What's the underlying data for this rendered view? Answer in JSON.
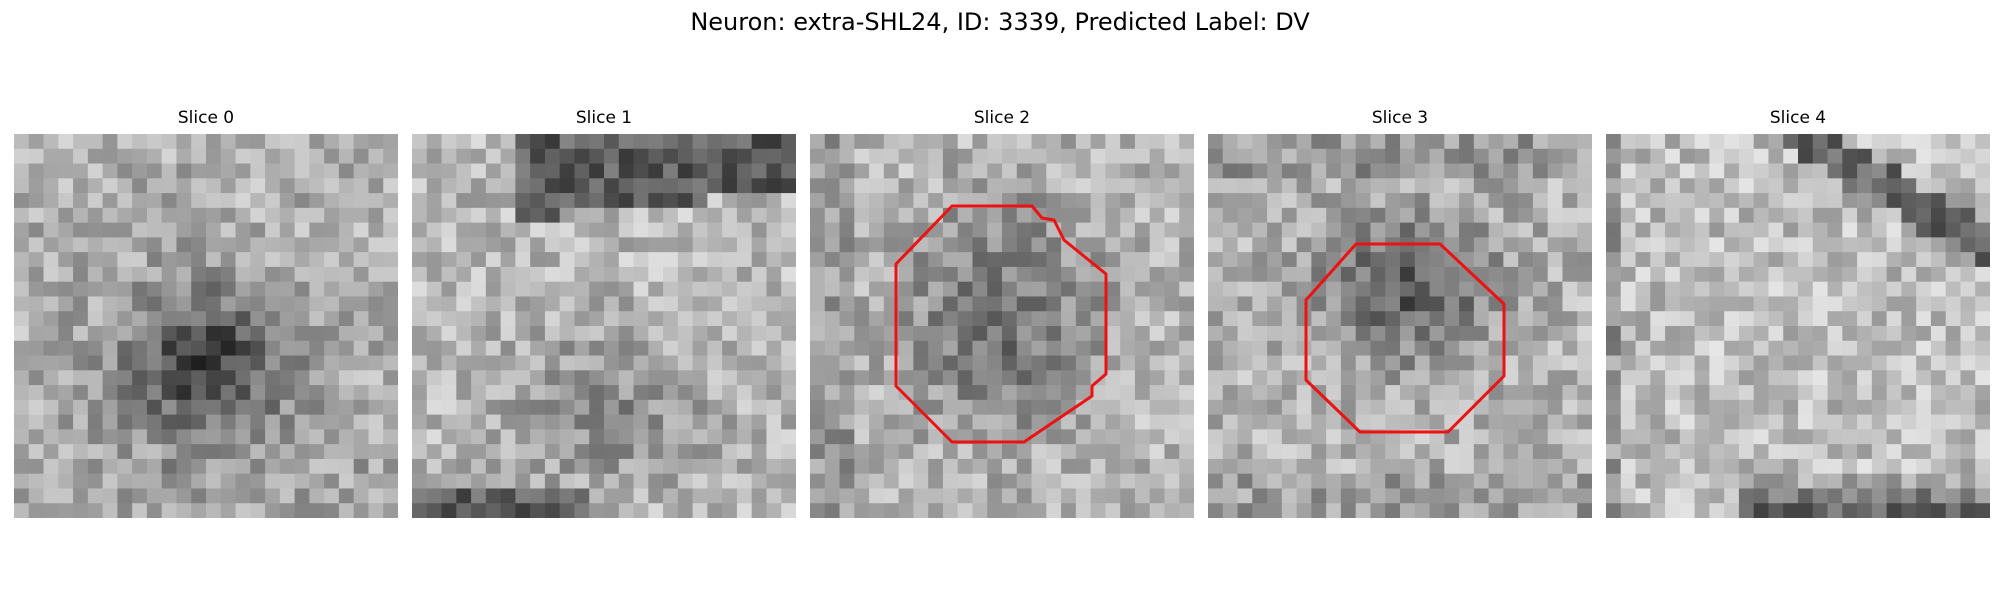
{
  "figure": {
    "title": "Neuron: extra-SHL24, ID: 3339, Predicted Label: DV"
  },
  "slices": [
    {
      "title": "Slice 0",
      "has_contour": false
    },
    {
      "title": "Slice 1",
      "has_contour": false
    },
    {
      "title": "Slice 2",
      "has_contour": true
    },
    {
      "title": "Slice 3",
      "has_contour": true
    },
    {
      "title": "Slice 4",
      "has_contour": false
    }
  ],
  "colors": {
    "contour": "#ee1111",
    "background": "#ffffff"
  }
}
